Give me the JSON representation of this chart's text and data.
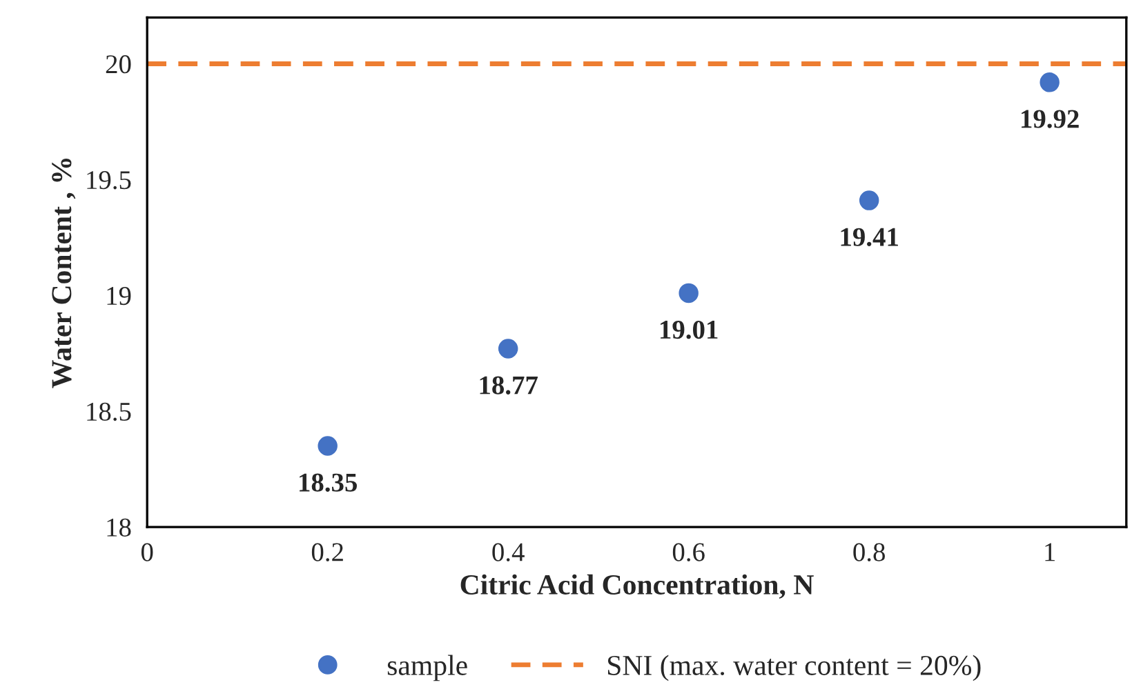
{
  "chart_data": {
    "type": "scatter",
    "xlabel": "Citric Acid Concentration, N",
    "ylabel": "Water Content , %",
    "x": [
      0.2,
      0.4,
      0.6,
      0.8,
      1
    ],
    "series": [
      {
        "name": "sample",
        "color": "#4472c4",
        "values": [
          18.35,
          18.77,
          19.01,
          19.41,
          19.92
        ]
      }
    ],
    "data_labels": true,
    "marker": "circle",
    "xlim": [
      0,
      1.085
    ],
    "xticks": [
      0,
      0.2,
      0.4,
      0.6,
      0.8,
      1
    ],
    "ylim": [
      18,
      20.2
    ],
    "yticks": [
      18,
      18.5,
      19,
      19.5,
      20
    ],
    "ref_lines": [
      {
        "axis": "y",
        "value": 20,
        "label": "SNI (max. water content = 20%)",
        "color": "#ed7d31",
        "line_style": "dashed"
      }
    ],
    "grid": false,
    "legend": "bottom"
  }
}
